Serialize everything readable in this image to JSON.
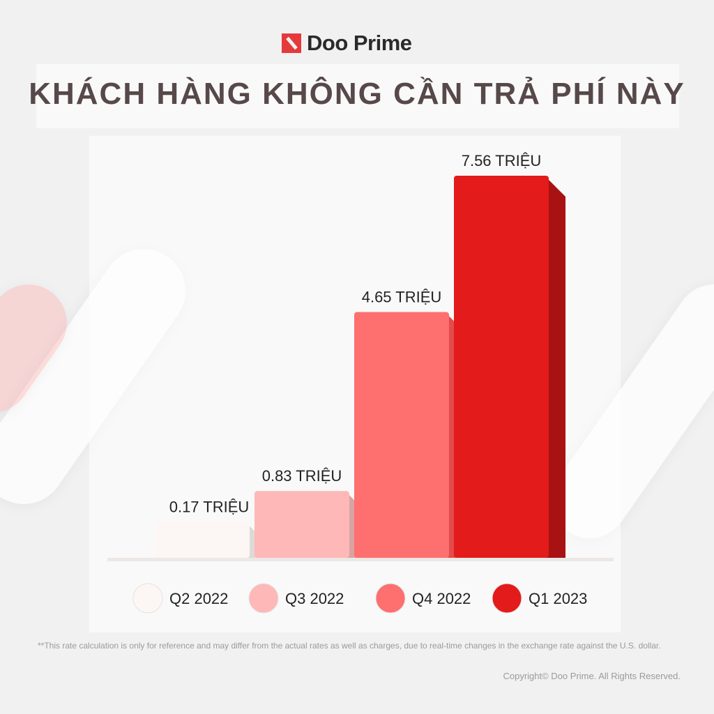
{
  "brand": {
    "name": "Doo Prime",
    "accent": "#e5393b"
  },
  "title": "KHÁCH HÀNG KHÔNG CẦN TRẢ PHÍ NÀY",
  "chart_data": {
    "type": "bar",
    "title": "KHÁCH HÀNG KHÔNG CẦN TRẢ PHÍ NÀY",
    "categories": [
      "Q2 2022",
      "Q3 2022",
      "Q4 2022",
      "Q1 2023"
    ],
    "values": [
      0.17,
      0.83,
      4.65,
      7.56
    ],
    "data_labels": [
      "0.17 TRIỆU",
      "0.83 TRIỆU",
      "4.65 TRIỆU",
      "7.56 TRIỆU"
    ],
    "unit": "TRIỆU",
    "colors": [
      "#fcf7f5",
      "#feb8b7",
      "#fe6f6f",
      "#e31b1b"
    ],
    "side_colors": [
      "#ddd9d7",
      "#d8a3a3",
      "#e44b4b",
      "#a81212"
    ],
    "legend": {
      "placement": "bottom",
      "entries": [
        "Q2 2022",
        "Q3 2022",
        "Q4 2022",
        "Q1 2023"
      ]
    },
    "grid": false
  },
  "footnote": "**This rate calculation is only for reference and may differ from the actual rates as well as charges, due to real-time changes in the exchange rate against the U.S. dollar.",
  "copyright": "Copyright© Doo Prime. All Rights Reserved."
}
